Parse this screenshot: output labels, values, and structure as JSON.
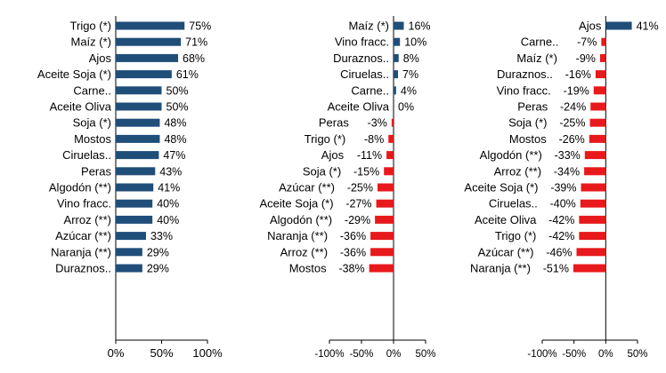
{
  "colors": {
    "positive": "#1f4e79",
    "negative": "#e8191c",
    "axis": "#000000"
  },
  "chart_data": [
    {
      "type": "bar",
      "orientation": "horizontal",
      "categories": [
        "Trigo (*)",
        "Maíz (*)",
        "Ajos",
        "Aceite Soja (*)",
        "Carne..",
        "Aceite Oliva",
        "Soja (*)",
        "Mostos",
        "Ciruelas..",
        "Peras",
        "Algodón (**)",
        "Vino fracc.",
        "Arroz (**)",
        "Azúcar (**)",
        "Naranja (**)",
        "Duraznos.."
      ],
      "values": [
        75,
        71,
        68,
        61,
        50,
        50,
        48,
        48,
        47,
        43,
        41,
        40,
        40,
        33,
        29,
        29
      ],
      "value_labels": [
        "75%",
        "71%",
        "68%",
        "61%",
        "50%",
        "50%",
        "48%",
        "48%",
        "47%",
        "43%",
        "41%",
        "40%",
        "40%",
        "33%",
        "29%",
        "29%"
      ],
      "xlim": [
        0,
        100
      ],
      "xticks": [
        0,
        50,
        100
      ],
      "xtick_labels": [
        "0%",
        "50%",
        "100%"
      ],
      "title": "",
      "xlabel": "",
      "ylabel": ""
    },
    {
      "type": "bar",
      "orientation": "horizontal",
      "categories": [
        "Maíz (*)",
        "Vino fracc.",
        "Duraznos..",
        "Ciruelas..",
        "Carne..",
        "Aceite Oliva",
        "Peras",
        "Trigo (*)",
        "Ajos",
        "Soja (*)",
        "Azúcar (**)",
        "Aceite Soja (*)",
        "Algodón (**)",
        "Naranja (**)",
        "Arroz (**)",
        "Mostos"
      ],
      "values": [
        16,
        10,
        8,
        7,
        4,
        0,
        -3,
        -8,
        -11,
        -15,
        -25,
        -27,
        -29,
        -36,
        -36,
        -38
      ],
      "value_labels": [
        "16%",
        "10%",
        "8%",
        "7%",
        "4%",
        "0%",
        "-3%",
        "-8%",
        "-11%",
        "-15%",
        "-25%",
        "-27%",
        "-29%",
        "-36%",
        "-36%",
        "-38%"
      ],
      "xlim": [
        -100,
        50
      ],
      "xticks": [
        -100,
        -50,
        0,
        50
      ],
      "xtick_labels": [
        "-100%",
        "-50%",
        "0%",
        "50%"
      ],
      "title": "",
      "xlabel": "",
      "ylabel": ""
    },
    {
      "type": "bar",
      "orientation": "horizontal",
      "categories": [
        "Ajos",
        "Carne..",
        "Maíz (*)",
        "Duraznos..",
        "Vino fracc.",
        "Peras",
        "Soja (*)",
        "Mostos",
        "Algodón (**)",
        "Arroz (**)",
        "Aceite Soja (*)",
        "Ciruelas..",
        "Aceite Oliva",
        "Trigo (*)",
        "Azúcar (**)",
        "Naranja (**)"
      ],
      "values": [
        41,
        -7,
        -9,
        -16,
        -19,
        -24,
        -25,
        -26,
        -33,
        -34,
        -39,
        -40,
        -42,
        -42,
        -46,
        -51
      ],
      "value_labels": [
        "41%",
        "-7%",
        "-9%",
        "-16%",
        "-19%",
        "-24%",
        "-25%",
        "-26%",
        "-33%",
        "-34%",
        "-39%",
        "-40%",
        "-42%",
        "-42%",
        "-46%",
        "-51%"
      ],
      "xlim": [
        -100,
        50
      ],
      "xticks": [
        -100,
        -50,
        0,
        50
      ],
      "xtick_labels": [
        "-100%",
        "-50%",
        "0%",
        "50%"
      ],
      "title": "",
      "xlabel": "",
      "ylabel": ""
    }
  ]
}
